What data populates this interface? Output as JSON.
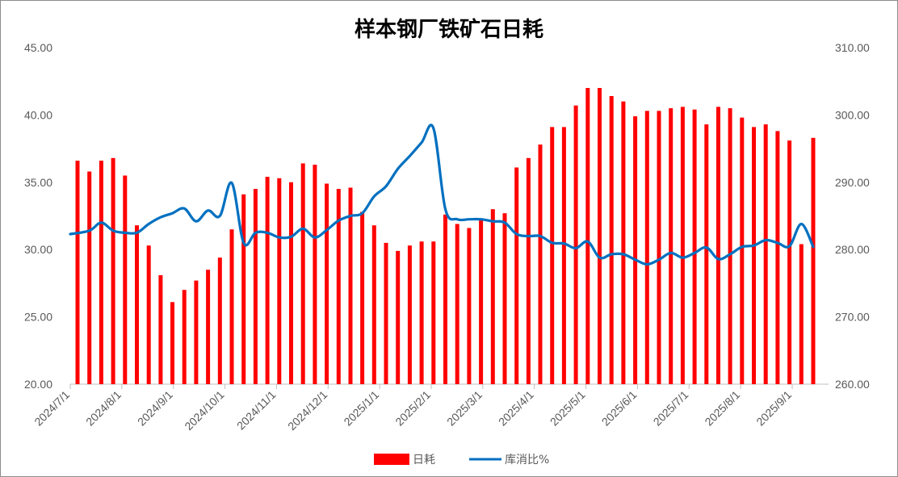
{
  "chart_data": {
    "type": "bar",
    "title": "样本钢厂铁矿石日耗",
    "x_tick_labels": [
      "2024/7/1",
      "2024/8/1",
      "2024/9/1",
      "2024/10/1",
      "2024/11/1",
      "2024/12/1",
      "2025/1/1",
      "2025/2/1",
      "2025/3/1",
      "2025/4/1",
      "2025/5/1",
      "2025/6/1",
      "2025/7/1",
      "2025/8/1",
      "2025/9/1"
    ],
    "y_left": {
      "ylim": [
        20,
        45
      ],
      "ticks": [
        "20.00",
        "25.00",
        "30.00",
        "35.00",
        "40.00",
        "45.00"
      ]
    },
    "y_right": {
      "ylim": [
        260,
        310
      ],
      "ticks": [
        "260.00",
        "270.00",
        "280.00",
        "290.00",
        "300.00",
        "310.00"
      ]
    },
    "series": [
      {
        "name": "日耗",
        "type": "bar",
        "axis": "left",
        "color": "#ff0000",
        "values": [
          36.6,
          35.8,
          36.6,
          36.8,
          35.5,
          31.8,
          30.3,
          28.1,
          26.1,
          27.0,
          27.7,
          28.5,
          29.4,
          31.5,
          34.1,
          34.5,
          35.4,
          35.3,
          35.0,
          36.4,
          36.3,
          34.9,
          34.5,
          34.6,
          32.8,
          31.8,
          30.5,
          29.9,
          30.3,
          30.6,
          30.6,
          32.6,
          31.9,
          31.6,
          32.2,
          33.0,
          32.7,
          36.1,
          36.8,
          37.8,
          39.1,
          39.1,
          40.7,
          42.0,
          42.0,
          41.4,
          41.0,
          39.9,
          40.3,
          40.3,
          40.5,
          40.6,
          40.4,
          39.3,
          40.6,
          40.5,
          39.8,
          39.1,
          39.3,
          38.8,
          38.1,
          30.4,
          38.3
        ]
      },
      {
        "name": "库消比%",
        "type": "line",
        "axis": "right",
        "color": "#0070c0",
        "values": [
          282.3,
          282.8,
          284.0,
          282.8,
          282.5,
          282.5,
          283.8,
          284.8,
          285.4,
          286.1,
          284.2,
          285.8,
          285.0,
          289.9,
          281.0,
          282.5,
          282.5,
          281.8,
          281.9,
          283.1,
          281.8,
          282.9,
          284.3,
          285.0,
          285.4,
          287.9,
          289.4,
          292.0,
          293.9,
          295.9,
          298.0,
          286.0,
          284.5,
          284.5,
          284.5,
          284.2,
          284.0,
          282.3,
          282.0,
          282.0,
          281.0,
          280.9,
          280.2,
          281.2,
          278.8,
          279.3,
          279.3,
          278.5,
          277.8,
          278.5,
          279.5,
          278.8,
          279.5,
          280.3,
          278.6,
          279.3,
          280.4,
          280.6,
          281.4,
          281.0,
          280.5,
          283.8,
          280.4
        ]
      }
    ],
    "legend": {
      "placement": "bottom",
      "items": [
        "日耗",
        "库消比%"
      ]
    },
    "grid": false
  }
}
